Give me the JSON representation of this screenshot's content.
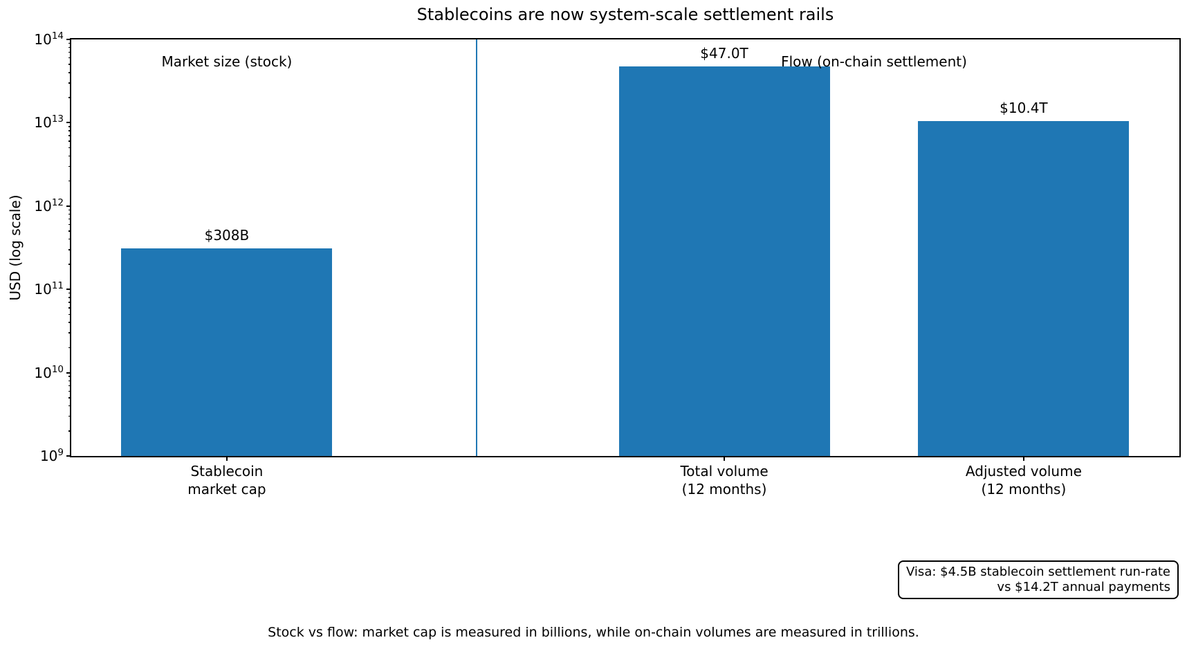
{
  "title": "Stablecoins are now system-scale settlement rails",
  "y_axis_label": "USD (log scale)",
  "caption": "Stock vs flow: market cap is measured in billions, while on-chain volumes are measured in trillions.",
  "annotation": {
    "line1": "Visa: $4.5B stablecoin settlement run-rate",
    "line2": "vs $14.2T annual payments"
  },
  "colors": {
    "bar": "#1f77b4",
    "divider": "#1f77b4",
    "text": "#000000"
  },
  "chart_data": {
    "type": "bar",
    "title": "Stablecoins are now system-scale settlement rails",
    "xlabel": "",
    "ylabel": "USD (log scale)",
    "yscale": "log",
    "ylim": [
      1000000000,
      100000000000000
    ],
    "grid": false,
    "legend": false,
    "categories": [
      "Stablecoin\nmarket cap",
      "Total volume\n(12 months)",
      "Adjusted volume\n(12 months)"
    ],
    "values": [
      308000000000,
      47000000000000,
      10400000000000
    ],
    "value_labels": [
      "$308B",
      "$47.0T",
      "$10.4T"
    ],
    "ytick_labels": [
      {
        "base": "10",
        "exp": "9"
      },
      {
        "base": "10",
        "exp": "10"
      },
      {
        "base": "10",
        "exp": "11"
      },
      {
        "base": "10",
        "exp": "12"
      },
      {
        "base": "10",
        "exp": "13"
      },
      {
        "base": "10",
        "exp": "14"
      }
    ],
    "sections": [
      {
        "label": "Market size (stock)",
        "bars": [
          0
        ]
      },
      {
        "label": "Flow (on-chain settlement)",
        "bars": [
          1,
          2
        ]
      }
    ],
    "divider_between_sections": true
  }
}
